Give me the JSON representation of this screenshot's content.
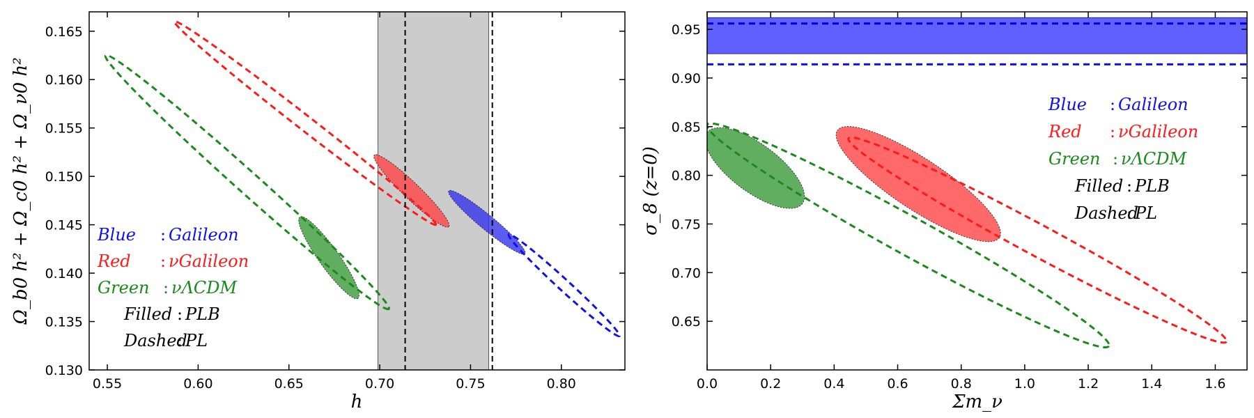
{
  "chart_data": [
    {
      "type": "contour",
      "id": "left",
      "xlabel": "h",
      "ylabel": "Ω_b0 h² + Ω_c0 h² + Ω_ν0 h²",
      "xlim": [
        0.54,
        0.835
      ],
      "ylim": [
        0.13,
        0.167
      ],
      "xticks": [
        0.55,
        0.6,
        0.65,
        0.7,
        0.75,
        0.8
      ],
      "xtick_labels": [
        "0.55",
        "0.60",
        "0.65",
        "0.70",
        "0.75",
        "0.80"
      ],
      "yticks": [
        0.13,
        0.135,
        0.14,
        0.145,
        0.15,
        0.155,
        0.16,
        0.165
      ],
      "ytick_labels": [
        "0.130",
        "0.135",
        "0.140",
        "0.145",
        "0.150",
        "0.155",
        "0.160",
        "0.165"
      ],
      "band": {
        "x0": 0.699,
        "x1": 0.76,
        "color": "#cccccc"
      },
      "vlines": [
        0.714,
        0.762
      ],
      "ellipses": [
        {
          "name": "Green νΛCDM PL",
          "style": "dashed",
          "color": "#1a8a1a",
          "end1": [
            0.549,
            0.1625
          ],
          "end2": [
            0.705,
            0.1363
          ],
          "width_data": [
            0.006,
            0.007
          ]
        },
        {
          "name": "Red νGalileon PL",
          "style": "dashed",
          "color": "#ff1a1a",
          "end1": [
            0.587,
            0.166
          ],
          "end2": [
            0.731,
            0.145
          ],
          "width_data": [
            0.004,
            0.0045
          ]
        },
        {
          "name": "Blue Galileon PL",
          "style": "dashed",
          "color": "#1010ee",
          "end1": [
            0.771,
            0.144
          ],
          "end2": [
            0.832,
            0.1335
          ],
          "width_data": [
            0.002,
            0.0045
          ]
        },
        {
          "name": "Green νΛCDM PLB",
          "style": "filled",
          "color": "#3a9a3a",
          "end1": [
            0.656,
            0.1458
          ],
          "end2": [
            0.688,
            0.1374
          ],
          "width_data": [
            0.0055,
            0.0055
          ]
        },
        {
          "name": "Red νGalileon PLB",
          "style": "filled",
          "color": "#ff4444",
          "end1": [
            0.697,
            0.1522
          ],
          "end2": [
            0.738,
            0.1448
          ],
          "width_data": [
            0.0045,
            0.0045
          ]
        },
        {
          "name": "Blue Galileon PLB",
          "style": "filled",
          "color": "#3333ee",
          "end1": [
            0.738,
            0.1485
          ],
          "end2": [
            0.78,
            0.142
          ],
          "width_data": [
            0.004,
            0.004
          ]
        }
      ],
      "legend": {
        "placement": "lower-left",
        "entries": [
          {
            "key": "Blue",
            "sep": ":",
            "value": "Galileon",
            "color": "#1010ee"
          },
          {
            "key": "Red",
            "sep": ":",
            "value": "νGalileon",
            "color": "#ff1a1a"
          },
          {
            "key": "Green",
            "sep": ":",
            "value": "νΛCDM",
            "color": "#1a8a1a"
          },
          {
            "key": "Filled",
            "sep": ":",
            "value": "PLB",
            "color": "#000000"
          },
          {
            "key": "Dashed",
            "sep": ":",
            "value": "PL",
            "color": "#000000"
          }
        ]
      }
    },
    {
      "type": "contour",
      "id": "right",
      "xlabel": "Σm_ν",
      "ylabel": "σ_8 (z=0)",
      "xlim": [
        0.0,
        1.7
      ],
      "ylim": [
        0.6,
        0.968
      ],
      "xticks": [
        0.0,
        0.2,
        0.4,
        0.6,
        0.8,
        1.0,
        1.2,
        1.4,
        1.6
      ],
      "xtick_labels": [
        "0.0",
        "0.2",
        "0.4",
        "0.6",
        "0.8",
        "1.0",
        "1.2",
        "1.4",
        "1.6"
      ],
      "yticks": [
        0.65,
        0.7,
        0.75,
        0.8,
        0.85,
        0.9,
        0.95
      ],
      "ytick_labels": [
        "0.65",
        "0.70",
        "0.75",
        "0.80",
        "0.85",
        "0.90",
        "0.95"
      ],
      "hband": {
        "y0": 0.925,
        "y1": 0.962,
        "color": "#6060ff"
      },
      "hlines": [
        {
          "y": 0.956,
          "color": "#0000cc"
        },
        {
          "y": 0.914,
          "color": "#1010ee"
        }
      ],
      "ellipses": [
        {
          "name": "Green νΛCDM PL",
          "style": "dashed",
          "color": "#1a8a1a",
          "end1": [
            0.0,
            0.852
          ],
          "end2": [
            1.265,
            0.6245
          ],
          "width_data": [
            0.06,
            0.02
          ]
        },
        {
          "name": "Red νGalileon PL",
          "style": "dashed",
          "color": "#ff1a1a",
          "end1": [
            0.445,
            0.838
          ],
          "end2": [
            1.635,
            0.629
          ],
          "width_data": [
            0.06,
            0.016
          ]
        },
        {
          "name": "Green νΛCDM PLB",
          "style": "filled",
          "color": "#3a9a3a",
          "end1": [
            0.0,
            0.844
          ],
          "end2": [
            0.3,
            0.771
          ],
          "width_data": [
            0.075,
            0.03
          ]
        },
        {
          "name": "Red νGalileon PLB",
          "style": "filled",
          "color": "#ff4444",
          "end1": [
            0.41,
            0.846
          ],
          "end2": [
            0.92,
            0.736
          ],
          "width_data": [
            0.08,
            0.032
          ]
        }
      ],
      "legend": {
        "placement": "right",
        "entries": [
          {
            "key": "Blue",
            "sep": ":",
            "value": "Galileon",
            "color": "#1010ee"
          },
          {
            "key": "Red",
            "sep": ":",
            "value": "νGalileon",
            "color": "#ff1a1a"
          },
          {
            "key": "Green",
            "sep": ":",
            "value": "νΛCDM",
            "color": "#1a8a1a"
          },
          {
            "key": "Filled",
            "sep": ":",
            "value": "PLB",
            "color": "#000000"
          },
          {
            "key": "Dashed",
            "sep": ":",
            "value": "PL",
            "color": "#000000"
          }
        ]
      }
    }
  ]
}
